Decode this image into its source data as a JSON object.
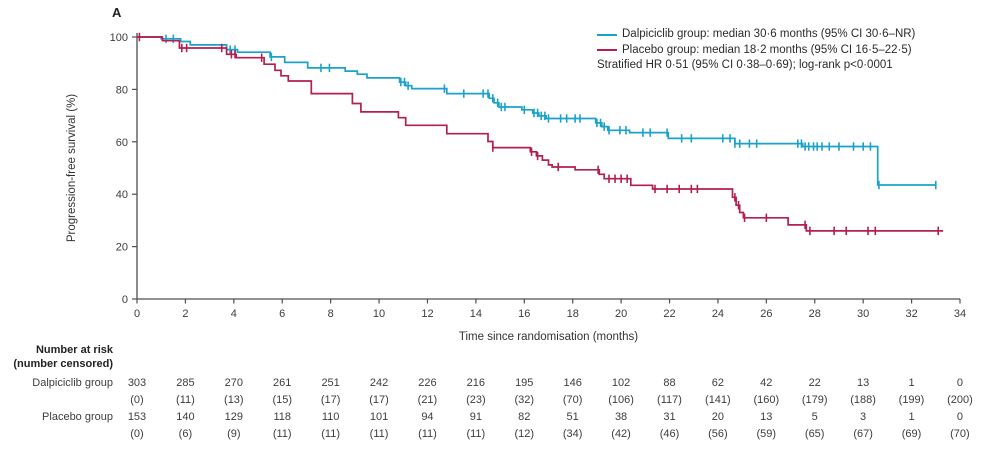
{
  "figure": {
    "panel_label": "A"
  },
  "legend": {
    "items": [
      {
        "label": "Dalpiciclib group: median 30·6 months (95% CI 30·6–NR)",
        "color": "#1aa2c9"
      },
      {
        "label": "Placebo group: median 18·2 months (95% CI 16·5–22·5)",
        "color": "#b41e50"
      }
    ],
    "note": "Stratified HR 0·51 (95% CI 0·38–0·69); log-rank p<0·0001"
  },
  "chart_data": {
    "type": "line",
    "subtype": "kaplan_meier_step",
    "panel_label": "A",
    "title": "",
    "xlabel": "Time since randomisation (months)",
    "ylabel": "Progression-free survival (%)",
    "xlim": [
      0,
      34
    ],
    "ylim": [
      0,
      100
    ],
    "xticks": [
      0,
      2,
      4,
      6,
      8,
      10,
      12,
      14,
      16,
      18,
      20,
      22,
      24,
      26,
      28,
      30,
      32,
      34
    ],
    "yticks": [
      0,
      20,
      40,
      60,
      80,
      100
    ],
    "grid": false,
    "legend_position": "top-right",
    "series": [
      {
        "id": "dalpiciclib",
        "name": "Dalpiciclib group",
        "color": "#1aa2c9",
        "median_months": "30·6",
        "ci": "30·6–NR",
        "steps": [
          [
            0,
            100
          ],
          [
            1.0,
            99.3
          ],
          [
            1.8,
            98.3
          ],
          [
            2.2,
            97.0
          ],
          [
            3.7,
            95.2
          ],
          [
            4.15,
            94.2
          ],
          [
            5.5,
            92.4
          ],
          [
            6.1,
            90.3
          ],
          [
            7.05,
            88.2
          ],
          [
            8.6,
            87.0
          ],
          [
            9.1,
            85.8
          ],
          [
            9.5,
            84.4
          ],
          [
            10.85,
            82.8
          ],
          [
            11.1,
            81.4
          ],
          [
            11.35,
            80.3
          ],
          [
            12.8,
            78.4
          ],
          [
            14.55,
            76.6
          ],
          [
            14.75,
            74.9
          ],
          [
            14.95,
            73.3
          ],
          [
            15.9,
            72.2
          ],
          [
            16.35,
            71.0
          ],
          [
            16.6,
            69.9
          ],
          [
            16.9,
            68.9
          ],
          [
            18.95,
            67.2
          ],
          [
            19.2,
            65.8
          ],
          [
            19.45,
            64.4
          ],
          [
            20.35,
            63.5
          ],
          [
            21.95,
            61.3
          ],
          [
            24.7,
            59.3
          ],
          [
            27.5,
            58.2
          ],
          [
            30.6,
            43.5
          ]
        ],
        "end_time": 33.0,
        "censor_times": [
          1.2,
          1.5,
          3.85,
          4.05,
          5.55,
          7.6,
          7.95,
          10.9,
          11.05,
          11.2,
          12.7,
          13.5,
          14.3,
          14.5,
          14.7,
          14.9,
          15.05,
          15.2,
          16.0,
          16.4,
          16.55,
          16.7,
          16.85,
          17.0,
          17.5,
          17.75,
          18.1,
          18.3,
          19.0,
          19.15,
          19.3,
          19.5,
          19.95,
          20.2,
          20.9,
          21.2,
          21.9,
          22.5,
          22.9,
          24.2,
          24.5,
          24.7,
          24.9,
          25.3,
          25.6,
          27.3,
          27.45,
          27.6,
          27.75,
          27.95,
          28.1,
          28.3,
          28.6,
          29.0,
          29.6,
          30.0,
          30.3,
          30.65,
          33.0
        ]
      },
      {
        "id": "placebo",
        "name": "Placebo group",
        "color": "#b41e50",
        "median_months": "18·2",
        "ci": "16·5–22·5",
        "steps": [
          [
            0,
            100
          ],
          [
            1.05,
            98.6
          ],
          [
            1.75,
            95.8
          ],
          [
            3.7,
            93.4
          ],
          [
            4.1,
            92.1
          ],
          [
            5.25,
            89.6
          ],
          [
            5.7,
            87.3
          ],
          [
            5.95,
            85.2
          ],
          [
            6.25,
            83.2
          ],
          [
            7.2,
            78.4
          ],
          [
            8.9,
            74.6
          ],
          [
            9.25,
            71.4
          ],
          [
            10.8,
            69.2
          ],
          [
            11.1,
            66.3
          ],
          [
            12.8,
            63.1
          ],
          [
            14.5,
            60.1
          ],
          [
            14.7,
            57.8
          ],
          [
            16.25,
            56.2
          ],
          [
            16.5,
            54.6
          ],
          [
            16.75,
            53.0
          ],
          [
            17.0,
            51.2
          ],
          [
            17.15,
            50.4
          ],
          [
            18.1,
            49.3
          ],
          [
            19.1,
            47.6
          ],
          [
            19.3,
            45.9
          ],
          [
            20.4,
            43.4
          ],
          [
            21.3,
            42.0
          ],
          [
            24.6,
            38.8
          ],
          [
            24.75,
            35.8
          ],
          [
            24.9,
            33.0
          ],
          [
            25.05,
            31.0
          ],
          [
            26.9,
            28.3
          ],
          [
            27.65,
            26.0
          ]
        ],
        "end_time": 33.3,
        "censor_times": [
          0.1,
          1.85,
          2.05,
          3.5,
          3.9,
          4.05,
          5.15,
          14.7,
          16.3,
          16.55,
          17.4,
          19.05,
          19.5,
          19.75,
          20.0,
          20.25,
          21.4,
          21.9,
          22.4,
          22.9,
          23.15,
          24.7,
          24.85,
          25.1,
          26.0,
          27.6,
          27.8,
          28.8,
          29.3,
          30.2,
          30.5,
          33.1
        ]
      }
    ],
    "at_risk_table": {
      "header_line1": "Number at risk",
      "header_line2": "(number censored)",
      "timepoints": [
        0,
        2,
        4,
        6,
        8,
        10,
        12,
        14,
        16,
        18,
        20,
        22,
        24,
        26,
        28,
        30,
        32,
        34
      ],
      "groups": [
        {
          "label": "Dalpiciclib group",
          "at_risk": [
            303,
            285,
            270,
            261,
            251,
            242,
            226,
            216,
            195,
            146,
            102,
            88,
            62,
            42,
            22,
            13,
            1,
            0
          ],
          "censored": [
            0,
            11,
            13,
            15,
            17,
            17,
            21,
            23,
            32,
            70,
            106,
            117,
            141,
            160,
            179,
            188,
            199,
            200
          ]
        },
        {
          "label": "Placebo group",
          "at_risk": [
            153,
            140,
            129,
            118,
            110,
            101,
            94,
            91,
            82,
            51,
            38,
            31,
            20,
            13,
            5,
            3,
            1,
            0
          ],
          "censored": [
            0,
            6,
            9,
            11,
            11,
            11,
            11,
            11,
            12,
            34,
            42,
            46,
            56,
            59,
            65,
            67,
            69,
            70
          ]
        }
      ]
    }
  }
}
